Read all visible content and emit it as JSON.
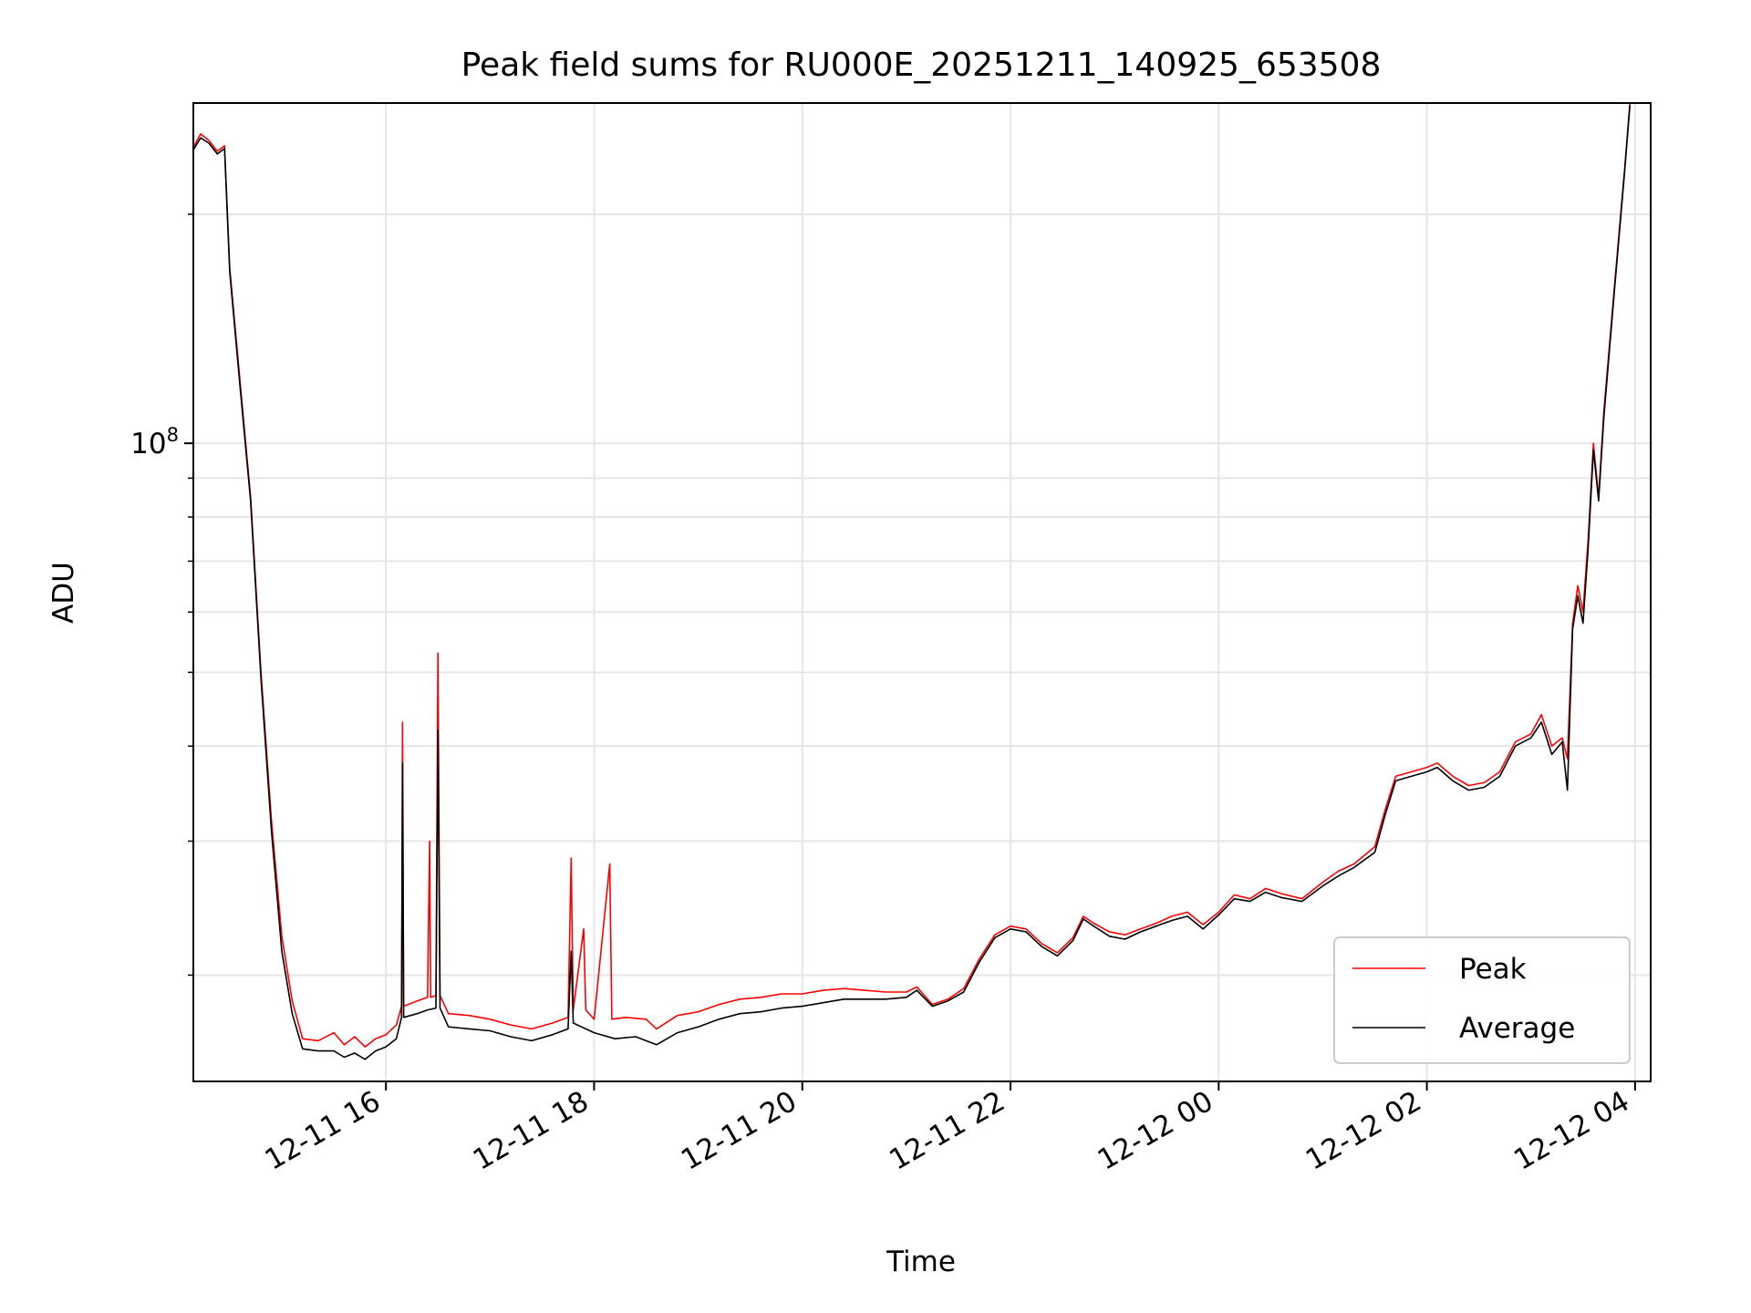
{
  "chart_data": {
    "type": "line",
    "title": "Peak field sums for RU000E_20251211_140925_653508",
    "xlabel": "Time",
    "ylabel": "ADU",
    "y_scale": "log",
    "ylim": [
      14500000,
      280000000
    ],
    "xlim_hours": [
      14.15,
      28.15
    ],
    "x_ticks": [
      {
        "label": "12-11 16",
        "hour": 16
      },
      {
        "label": "12-11 18",
        "hour": 18
      },
      {
        "label": "12-11 20",
        "hour": 20
      },
      {
        "label": "12-11 22",
        "hour": 22
      },
      {
        "label": "12-12 00",
        "hour": 24
      },
      {
        "label": "12-12 02",
        "hour": 26
      },
      {
        "label": "12-12 04",
        "hour": 28
      }
    ],
    "y_major_ticks": [
      {
        "base": "10",
        "exp": "8",
        "value": 100000000
      }
    ],
    "y_minor_ticks": [
      20000000,
      30000000,
      40000000,
      50000000,
      60000000,
      70000000,
      80000000,
      90000000,
      200000000
    ],
    "grid": true,
    "legend_position": "bottom-right",
    "series": [
      {
        "name": "Peak",
        "color": "#ff0000",
        "points": [
          [
            14.15,
            245000000
          ],
          [
            14.22,
            255000000
          ],
          [
            14.3,
            250000000
          ],
          [
            14.38,
            242000000
          ],
          [
            14.45,
            246000000
          ],
          [
            14.5,
            170000000
          ],
          [
            14.6,
            120000000
          ],
          [
            14.7,
            85000000
          ],
          [
            14.8,
            50000000
          ],
          [
            14.9,
            32000000
          ],
          [
            15.0,
            22500000
          ],
          [
            15.1,
            18500000
          ],
          [
            15.2,
            16500000
          ],
          [
            15.35,
            16400000
          ],
          [
            15.5,
            16800000
          ],
          [
            15.6,
            16200000
          ],
          [
            15.7,
            16600000
          ],
          [
            15.8,
            16100000
          ],
          [
            15.9,
            16500000
          ],
          [
            16.0,
            16700000
          ],
          [
            16.1,
            17200000
          ],
          [
            16.15,
            18200000
          ],
          [
            16.16,
            43000000
          ],
          [
            16.17,
            18200000
          ],
          [
            16.3,
            18500000
          ],
          [
            16.4,
            18700000
          ],
          [
            16.42,
            30000000
          ],
          [
            16.43,
            18700000
          ],
          [
            16.48,
            18800000
          ],
          [
            16.5,
            53000000
          ],
          [
            16.52,
            18800000
          ],
          [
            16.6,
            17800000
          ],
          [
            16.8,
            17700000
          ],
          [
            17.0,
            17500000
          ],
          [
            17.2,
            17200000
          ],
          [
            17.4,
            17000000
          ],
          [
            17.6,
            17300000
          ],
          [
            17.75,
            17600000
          ],
          [
            17.78,
            28500000
          ],
          [
            17.8,
            18000000
          ],
          [
            17.9,
            23000000
          ],
          [
            17.92,
            18000000
          ],
          [
            18.0,
            17500000
          ],
          [
            18.15,
            28000000
          ],
          [
            18.17,
            17500000
          ],
          [
            18.3,
            17600000
          ],
          [
            18.5,
            17500000
          ],
          [
            18.6,
            17000000
          ],
          [
            18.8,
            17700000
          ],
          [
            19.0,
            17900000
          ],
          [
            19.2,
            18300000
          ],
          [
            19.4,
            18600000
          ],
          [
            19.6,
            18700000
          ],
          [
            19.8,
            18900000
          ],
          [
            20.0,
            18900000
          ],
          [
            20.2,
            19100000
          ],
          [
            20.4,
            19200000
          ],
          [
            20.6,
            19100000
          ],
          [
            20.8,
            19000000
          ],
          [
            21.0,
            19000000
          ],
          [
            21.1,
            19300000
          ],
          [
            21.25,
            18300000
          ],
          [
            21.4,
            18600000
          ],
          [
            21.55,
            19200000
          ],
          [
            21.7,
            21000000
          ],
          [
            21.85,
            22600000
          ],
          [
            22.0,
            23200000
          ],
          [
            22.15,
            23000000
          ],
          [
            22.3,
            22000000
          ],
          [
            22.45,
            21400000
          ],
          [
            22.6,
            22400000
          ],
          [
            22.7,
            23900000
          ],
          [
            22.8,
            23400000
          ],
          [
            22.95,
            22800000
          ],
          [
            23.1,
            22600000
          ],
          [
            23.25,
            23000000
          ],
          [
            23.4,
            23400000
          ],
          [
            23.55,
            23900000
          ],
          [
            23.7,
            24200000
          ],
          [
            23.85,
            23300000
          ],
          [
            24.0,
            24200000
          ],
          [
            24.15,
            25500000
          ],
          [
            24.3,
            25200000
          ],
          [
            24.45,
            26000000
          ],
          [
            24.6,
            25600000
          ],
          [
            24.8,
            25200000
          ],
          [
            25.0,
            26500000
          ],
          [
            25.15,
            27400000
          ],
          [
            25.3,
            28000000
          ],
          [
            25.5,
            29500000
          ],
          [
            25.6,
            33000000
          ],
          [
            25.7,
            36500000
          ],
          [
            25.85,
            37000000
          ],
          [
            26.0,
            37500000
          ],
          [
            26.1,
            38000000
          ],
          [
            26.25,
            36500000
          ],
          [
            26.4,
            35500000
          ],
          [
            26.55,
            35800000
          ],
          [
            26.7,
            37000000
          ],
          [
            26.85,
            40500000
          ],
          [
            27.0,
            41500000
          ],
          [
            27.1,
            44000000
          ],
          [
            27.2,
            40000000
          ],
          [
            27.3,
            41000000
          ],
          [
            27.35,
            38500000
          ],
          [
            27.4,
            58000000
          ],
          [
            27.45,
            65000000
          ],
          [
            27.5,
            60000000
          ],
          [
            27.55,
            75000000
          ],
          [
            27.6,
            100000000
          ],
          [
            27.65,
            85000000
          ],
          [
            27.7,
            110000000
          ],
          [
            27.8,
            160000000
          ],
          [
            27.9,
            230000000
          ],
          [
            27.95,
            280000000
          ]
        ]
      },
      {
        "name": "Average",
        "color": "#000000",
        "points": [
          [
            14.15,
            243000000
          ],
          [
            14.22,
            252000000
          ],
          [
            14.3,
            248000000
          ],
          [
            14.38,
            240000000
          ],
          [
            14.45,
            244000000
          ],
          [
            14.5,
            168000000
          ],
          [
            14.6,
            118000000
          ],
          [
            14.7,
            84000000
          ],
          [
            14.8,
            49000000
          ],
          [
            14.9,
            31000000
          ],
          [
            15.0,
            21500000
          ],
          [
            15.1,
            17800000
          ],
          [
            15.2,
            16000000
          ],
          [
            15.35,
            15900000
          ],
          [
            15.5,
            15900000
          ],
          [
            15.6,
            15600000
          ],
          [
            15.7,
            15800000
          ],
          [
            15.8,
            15500000
          ],
          [
            15.9,
            15900000
          ],
          [
            16.0,
            16100000
          ],
          [
            16.1,
            16500000
          ],
          [
            16.15,
            17600000
          ],
          [
            16.16,
            38000000
          ],
          [
            16.17,
            17600000
          ],
          [
            16.3,
            17800000
          ],
          [
            16.4,
            18000000
          ],
          [
            16.48,
            18100000
          ],
          [
            16.5,
            42000000
          ],
          [
            16.52,
            18100000
          ],
          [
            16.6,
            17100000
          ],
          [
            16.8,
            17000000
          ],
          [
            17.0,
            16900000
          ],
          [
            17.2,
            16600000
          ],
          [
            17.4,
            16400000
          ],
          [
            17.6,
            16700000
          ],
          [
            17.75,
            17000000
          ],
          [
            17.78,
            21500000
          ],
          [
            17.8,
            17300000
          ],
          [
            18.0,
            16800000
          ],
          [
            18.2,
            16500000
          ],
          [
            18.4,
            16600000
          ],
          [
            18.6,
            16200000
          ],
          [
            18.8,
            16800000
          ],
          [
            19.0,
            17100000
          ],
          [
            19.2,
            17500000
          ],
          [
            19.4,
            17800000
          ],
          [
            19.6,
            17900000
          ],
          [
            19.8,
            18100000
          ],
          [
            20.0,
            18200000
          ],
          [
            20.2,
            18400000
          ],
          [
            20.4,
            18600000
          ],
          [
            20.6,
            18600000
          ],
          [
            20.8,
            18600000
          ],
          [
            21.0,
            18700000
          ],
          [
            21.1,
            19100000
          ],
          [
            21.25,
            18200000
          ],
          [
            21.4,
            18500000
          ],
          [
            21.55,
            19000000
          ],
          [
            21.7,
            20800000
          ],
          [
            21.85,
            22400000
          ],
          [
            22.0,
            23000000
          ],
          [
            22.15,
            22800000
          ],
          [
            22.3,
            21800000
          ],
          [
            22.45,
            21200000
          ],
          [
            22.6,
            22200000
          ],
          [
            22.7,
            23700000
          ],
          [
            22.8,
            23200000
          ],
          [
            22.95,
            22500000
          ],
          [
            23.1,
            22300000
          ],
          [
            23.25,
            22800000
          ],
          [
            23.4,
            23200000
          ],
          [
            23.55,
            23600000
          ],
          [
            23.7,
            23900000
          ],
          [
            23.85,
            23000000
          ],
          [
            24.0,
            24000000
          ],
          [
            24.15,
            25200000
          ],
          [
            24.3,
            25000000
          ],
          [
            24.45,
            25700000
          ],
          [
            24.6,
            25300000
          ],
          [
            24.8,
            25000000
          ],
          [
            25.0,
            26200000
          ],
          [
            25.15,
            27000000
          ],
          [
            25.3,
            27700000
          ],
          [
            25.5,
            29000000
          ],
          [
            25.6,
            32500000
          ],
          [
            25.7,
            36000000
          ],
          [
            25.85,
            36500000
          ],
          [
            26.0,
            37000000
          ],
          [
            26.1,
            37500000
          ],
          [
            26.25,
            36000000
          ],
          [
            26.4,
            35000000
          ],
          [
            26.55,
            35300000
          ],
          [
            26.7,
            36500000
          ],
          [
            26.85,
            40000000
          ],
          [
            27.0,
            41000000
          ],
          [
            27.1,
            43000000
          ],
          [
            27.2,
            39000000
          ],
          [
            27.3,
            40500000
          ],
          [
            27.35,
            35000000
          ],
          [
            27.4,
            57000000
          ],
          [
            27.45,
            63000000
          ],
          [
            27.5,
            58000000
          ],
          [
            27.55,
            73000000
          ],
          [
            27.6,
            98000000
          ],
          [
            27.65,
            84000000
          ],
          [
            27.7,
            108000000
          ],
          [
            27.8,
            158000000
          ],
          [
            27.9,
            228000000
          ],
          [
            27.95,
            278000000
          ]
        ]
      }
    ]
  }
}
